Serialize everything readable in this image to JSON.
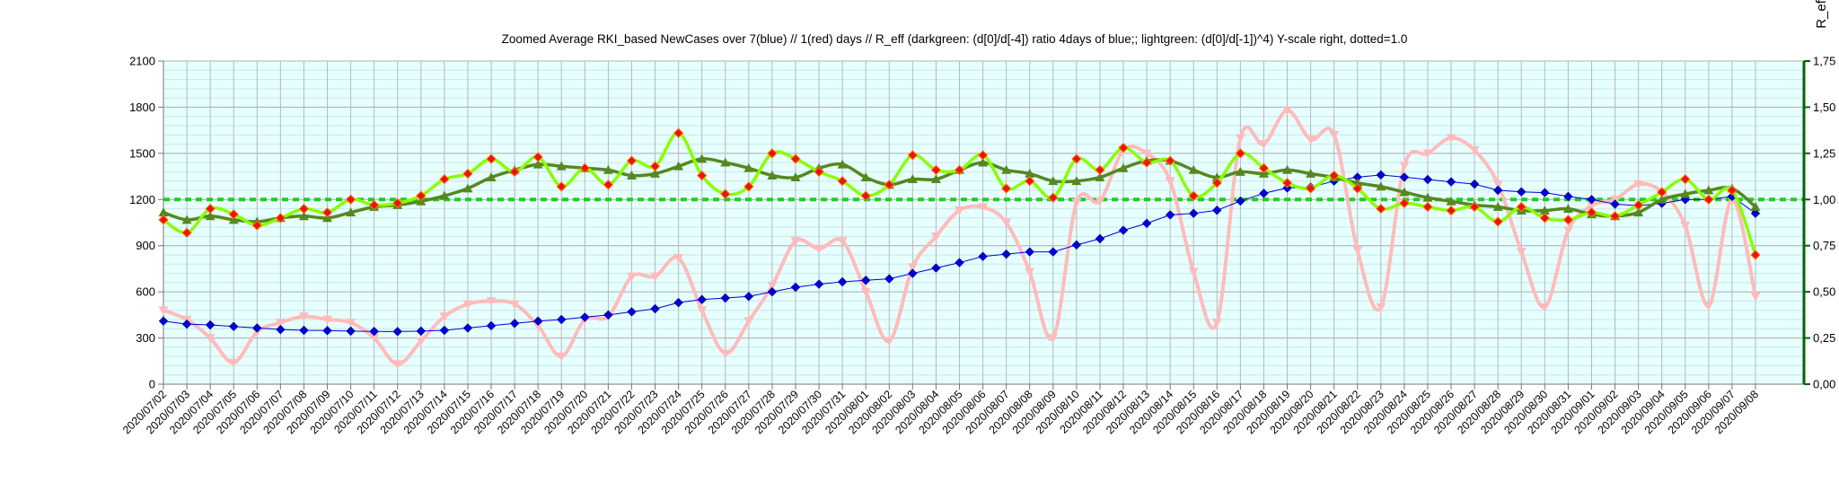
{
  "chart_data": {
    "type": "line",
    "title": "Zoomed Average RKI_based NewCases over 7(blue) // 1(red) days //  R_eff (darkgreen: (d[0]/d[-4]) ratio 4days of blue;; lightgreen: (d[0]/d[-1])^4) Y-scale right, dotted=1.0",
    "y2label": "R_eff",
    "ylim": [
      0,
      2100
    ],
    "y2lim": [
      0,
      1.75
    ],
    "yticks": [
      "0",
      "300",
      "600",
      "900",
      "1200",
      "1500",
      "1800",
      "2100"
    ],
    "y2ticks": [
      "0,00",
      "0,25",
      "0,50",
      "0,75",
      "1,00",
      "1,25",
      "1,50",
      "1,75"
    ],
    "reference_line_right": 1.0,
    "grid": true,
    "categories": [
      "2020/07/02",
      "2020/07/03",
      "2020/07/04",
      "2020/07/05",
      "2020/07/06",
      "2020/07/07",
      "2020/07/08",
      "2020/07/09",
      "2020/07/10",
      "2020/07/11",
      "2020/07/12",
      "2020/07/13",
      "2020/07/14",
      "2020/07/15",
      "2020/07/16",
      "2020/07/17",
      "2020/07/18",
      "2020/07/19",
      "2020/07/20",
      "2020/07/21",
      "2020/07/22",
      "2020/07/23",
      "2020/07/24",
      "2020/07/25",
      "2020/07/26",
      "2020/07/27",
      "2020/07/28",
      "2020/07/29",
      "2020/07/30",
      "2020/07/31",
      "2020/08/01",
      "2020/08/02",
      "2020/08/03",
      "2020/08/04",
      "2020/08/05",
      "2020/08/06",
      "2020/08/07",
      "2020/08/08",
      "2020/08/09",
      "2020/08/10",
      "2020/08/11",
      "2020/08/12",
      "2020/08/13",
      "2020/08/14",
      "2020/08/15",
      "2020/08/16",
      "2020/08/17",
      "2020/08/18",
      "2020/08/19",
      "2020/08/20",
      "2020/08/21",
      "2020/08/22",
      "2020/08/23",
      "2020/08/24",
      "2020/08/25",
      "2020/08/26",
      "2020/08/27",
      "2020/08/28",
      "2020/08/29",
      "2020/08/30",
      "2020/08/31",
      "2020/09/01",
      "2020/09/02",
      "2020/09/03",
      "2020/09/04",
      "2020/09/05",
      "2020/09/06",
      "2020/09/07",
      "2020/09/08"
    ],
    "series": [
      {
        "key": "avg7",
        "axis": "left",
        "color": "#0000dd",
        "marker": "diamond",
        "values": [
          410,
          390,
          385,
          375,
          365,
          355,
          350,
          348,
          345,
          343,
          342,
          345,
          350,
          365,
          380,
          395,
          410,
          420,
          435,
          450,
          470,
          490,
          530,
          550,
          560,
          570,
          600,
          630,
          650,
          665,
          675,
          685,
          720,
          755,
          790,
          830,
          845,
          860,
          860,
          905,
          945,
          1000,
          1045,
          1100,
          1110,
          1130,
          1190,
          1240,
          1275,
          1280,
          1320,
          1345,
          1360,
          1345,
          1330,
          1315,
          1300,
          1260,
          1250,
          1245,
          1220,
          1200,
          1170,
          1160,
          1175,
          1200,
          1200,
          1220,
          1110
        ]
      },
      {
        "key": "daily",
        "axis": "left",
        "color": "#ffbbbb",
        "marker": "triangle-down",
        "values": [
          480,
          420,
          300,
          140,
          340,
          400,
          440,
          420,
          400,
          300,
          130,
          280,
          440,
          520,
          540,
          520,
          380,
          180,
          420,
          440,
          700,
          700,
          820,
          480,
          200,
          410,
          640,
          930,
          880,
          930,
          600,
          280,
          760,
          960,
          1130,
          1150,
          1050,
          730,
          300,
          1180,
          1190,
          1520,
          1500,
          1320,
          730,
          400,
          1600,
          1560,
          1780,
          1590,
          1620,
          870,
          500,
          1420,
          1500,
          1600,
          1520,
          1300,
          860,
          500,
          1000,
          1160,
          1200,
          1300,
          1250,
          1030,
          510,
          1200,
          570
        ]
      },
      {
        "key": "reff4",
        "axis": "right",
        "color": "#55881f",
        "marker": "triangle-up",
        "values": [
          0.93,
          0.89,
          0.91,
          0.89,
          0.88,
          0.9,
          0.91,
          0.9,
          0.93,
          0.96,
          0.97,
          0.99,
          1.02,
          1.06,
          1.12,
          1.16,
          1.19,
          1.18,
          1.17,
          1.16,
          1.13,
          1.14,
          1.18,
          1.22,
          1.2,
          1.17,
          1.13,
          1.12,
          1.17,
          1.19,
          1.12,
          1.08,
          1.11,
          1.11,
          1.16,
          1.2,
          1.16,
          1.14,
          1.1,
          1.1,
          1.12,
          1.17,
          1.21,
          1.21,
          1.16,
          1.12,
          1.15,
          1.14,
          1.16,
          1.14,
          1.12,
          1.09,
          1.07,
          1.04,
          1.01,
          0.99,
          0.97,
          0.96,
          0.94,
          0.94,
          0.95,
          0.92,
          0.91,
          0.93,
          1.0,
          1.03,
          1.05,
          1.06,
          0.96
        ]
      },
      {
        "key": "reff1",
        "axis": "right",
        "color": "#88ff00",
        "marker": "diamond",
        "marker_color": "#ee1111",
        "values": [
          0.89,
          0.82,
          0.95,
          0.92,
          0.86,
          0.9,
          0.95,
          0.93,
          1.0,
          0.97,
          0.98,
          1.02,
          1.11,
          1.14,
          1.22,
          1.15,
          1.23,
          1.07,
          1.17,
          1.08,
          1.21,
          1.18,
          1.36,
          1.13,
          1.03,
          1.07,
          1.25,
          1.22,
          1.15,
          1.1,
          1.02,
          1.08,
          1.24,
          1.16,
          1.16,
          1.24,
          1.06,
          1.1,
          1.01,
          1.22,
          1.16,
          1.28,
          1.2,
          1.21,
          1.02,
          1.09,
          1.25,
          1.17,
          1.09,
          1.06,
          1.13,
          1.06,
          0.95,
          0.98,
          0.96,
          0.94,
          0.96,
          0.88,
          0.96,
          0.9,
          0.89,
          0.93,
          0.91,
          0.97,
          1.04,
          1.11,
          1.0,
          1.05,
          0.7
        ]
      }
    ]
  }
}
